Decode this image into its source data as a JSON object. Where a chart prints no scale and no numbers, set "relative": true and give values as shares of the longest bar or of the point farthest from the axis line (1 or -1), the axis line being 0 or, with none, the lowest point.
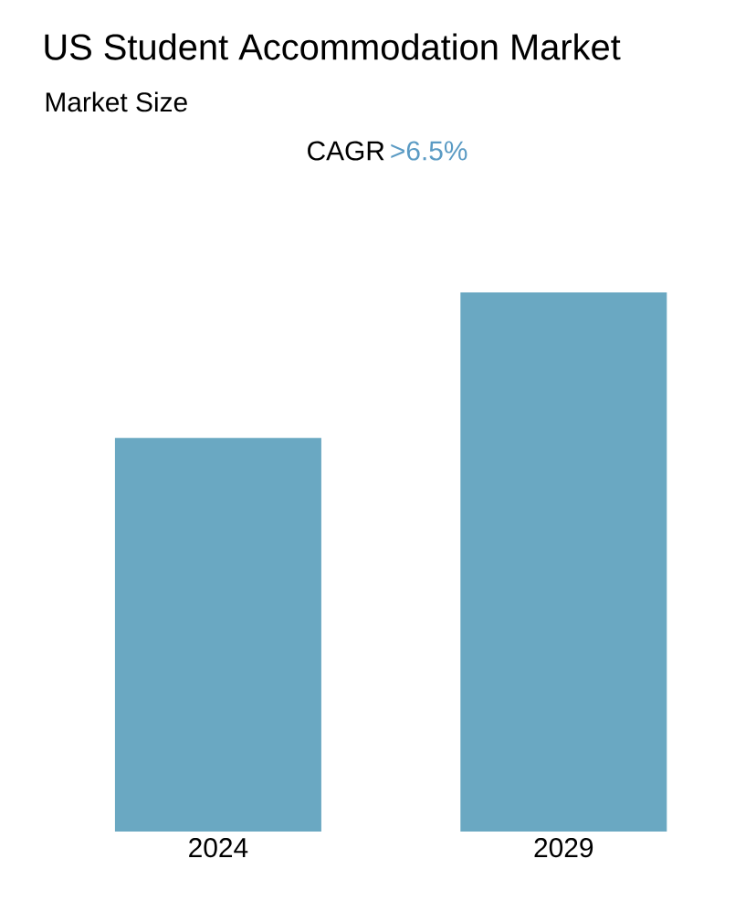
{
  "chart_data": {
    "type": "bar",
    "title": "US Student Accommodation Market",
    "subtitle": "Market Size",
    "annotations": [
      "CAGR",
      ">6.5%"
    ],
    "categories": [
      "2024",
      "2029"
    ],
    "values": [
      0.73,
      1
    ],
    "color": "#6aa8c2",
    "relative": true
  }
}
